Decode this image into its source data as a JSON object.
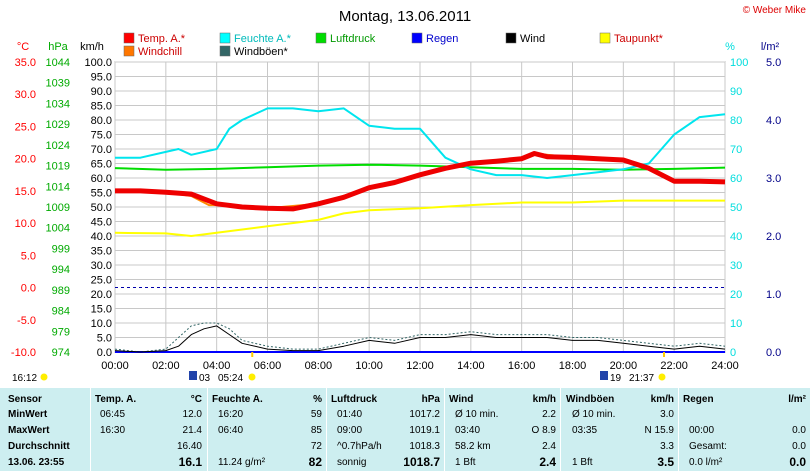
{
  "chart_data": {
    "type": "line",
    "title": "Montag, 13.06.2011",
    "credit": "© Weber Mike",
    "x_ticks": [
      "00:00",
      "02:00",
      "04:00",
      "06:00",
      "08:00",
      "10:00",
      "12:00",
      "14:00",
      "16:00",
      "18:00",
      "20:00",
      "22:00",
      "24:00"
    ],
    "x_range": [
      0,
      24
    ],
    "axes": {
      "temp": {
        "label": "°C",
        "range": [
          -10,
          35
        ],
        "ticks": [
          "-10.0",
          "-5.0",
          "0.0",
          "5.0",
          "10.0",
          "15.0",
          "20.0",
          "25.0",
          "30.0",
          "35.0"
        ],
        "color": "#ff0000"
      },
      "pressure": {
        "label": "hPa",
        "range": [
          974,
          1044
        ],
        "ticks": [
          "974",
          "979",
          "984",
          "989",
          "994",
          "999",
          "1004",
          "1009",
          "1014",
          "1019",
          "1024",
          "1029",
          "1034",
          "1039",
          "1044"
        ],
        "color": "#00aa00"
      },
      "wind": {
        "label": "km/h",
        "range": [
          0,
          100
        ],
        "ticks": [
          "0.0",
          "5.0",
          "10.0",
          "15.0",
          "20.0",
          "25.0",
          "30.0",
          "35.0",
          "40.0",
          "45.0",
          "50.0",
          "55.0",
          "60.0",
          "65.0",
          "70.0",
          "75.0",
          "80.0",
          "85.0",
          "90.0",
          "95.0",
          "100.0"
        ],
        "color": "#000000"
      },
      "humidity": {
        "label": "%",
        "range": [
          0,
          100
        ],
        "ticks": [
          "0",
          "10",
          "20",
          "30",
          "40",
          "50",
          "60",
          "70",
          "80",
          "90",
          "100"
        ],
        "color": "#00dddd"
      },
      "rain": {
        "label": "l/m²",
        "range": [
          0,
          5
        ],
        "ticks": [
          "0.0",
          "1.0",
          "2.0",
          "3.0",
          "4.0",
          "5.0"
        ],
        "color": "#000088"
      }
    },
    "legend": [
      {
        "name": "Temp. A.*",
        "color": "#ff0000"
      },
      {
        "name": "Feuchte A.*",
        "color": "#00ffff"
      },
      {
        "name": "Luftdruck",
        "color": "#00dd00"
      },
      {
        "name": "Regen",
        "color": "#0000ff"
      },
      {
        "name": "Wind",
        "color": "#000000"
      },
      {
        "name": "Taupunkt*",
        "color": "#ffff00"
      },
      {
        "name": "Windchill",
        "color": "#ff7700"
      },
      {
        "name": "Windböen*",
        "color": "#336666"
      }
    ],
    "series": [
      {
        "name": "Temp. A.*",
        "axis": "temp",
        "color": "#ee0000",
        "x": [
          0,
          1,
          2,
          3,
          4,
          5,
          6,
          7,
          8,
          9,
          10,
          11,
          12,
          13,
          14,
          15,
          16,
          16.5,
          17,
          18,
          19,
          20,
          21,
          22,
          23,
          24
        ],
        "y": [
          15.0,
          15.0,
          14.8,
          14.5,
          13.0,
          12.5,
          12.3,
          12.2,
          13.0,
          14.0,
          15.5,
          16.3,
          17.5,
          18.5,
          19.3,
          19.6,
          20.0,
          20.8,
          20.3,
          20.2,
          20.0,
          19.8,
          18.5,
          16.5,
          16.5,
          16.4
        ]
      },
      {
        "name": "Windchill",
        "axis": "temp",
        "color": "#ff8800",
        "x": [
          0,
          2,
          3,
          3.7,
          4,
          6,
          8,
          10,
          12,
          14,
          16,
          16.5,
          18,
          20,
          21,
          22,
          23,
          24
        ],
        "y": [
          15.0,
          14.8,
          14.2,
          12.8,
          12.8,
          12.3,
          13.0,
          15.5,
          17.5,
          19.3,
          20.0,
          20.8,
          20.2,
          19.8,
          18.3,
          16.4,
          16.5,
          16.4
        ]
      },
      {
        "name": "Feuchte A.*",
        "axis": "humidity",
        "color": "#00e5ee",
        "x": [
          0,
          1,
          2,
          2.5,
          3,
          4,
          4.5,
          5,
          6,
          7,
          8,
          9,
          10,
          11,
          12,
          13,
          14,
          15,
          16,
          17,
          18,
          19,
          20,
          21,
          22,
          23,
          24
        ],
        "y": [
          67,
          67,
          69,
          70,
          68,
          70,
          77,
          80,
          84,
          84,
          83,
          84,
          78,
          77,
          77,
          67,
          63,
          61,
          61,
          60,
          61,
          62,
          63,
          65,
          75,
          81,
          82
        ]
      },
      {
        "name": "Luftdruck",
        "axis": "pressure",
        "color": "#00dd00",
        "x": [
          0,
          2,
          4,
          6,
          8,
          10,
          12,
          14,
          16,
          18,
          20,
          22,
          24
        ],
        "y": [
          1018.4,
          1018.0,
          1018.2,
          1018.6,
          1019.0,
          1019.2,
          1019.0,
          1018.6,
          1018.2,
          1018.2,
          1018.0,
          1018.2,
          1018.5
        ]
      },
      {
        "name": "Taupunkt*",
        "axis": "temp",
        "color": "#ffff00",
        "x": [
          0,
          2,
          3,
          4,
          6,
          8,
          9,
          10,
          12,
          14,
          16,
          18,
          20,
          22,
          24
        ],
        "y": [
          8.5,
          8.4,
          8.0,
          8.5,
          9.5,
          10.5,
          11.5,
          12.0,
          12.3,
          12.8,
          13.2,
          13.2,
          13.5,
          13.5,
          13.5
        ]
      },
      {
        "name": "Wind",
        "axis": "wind",
        "color": "#000000",
        "x": [
          0,
          1,
          2,
          2.5,
          3,
          3.5,
          4,
          4.5,
          5,
          6,
          7,
          8,
          9,
          10,
          11,
          12,
          13,
          14,
          15,
          16,
          17,
          18,
          19,
          20,
          21,
          22,
          23,
          24
        ],
        "y": [
          0.5,
          0,
          0.5,
          2,
          6,
          8,
          9,
          6,
          3,
          1,
          0.5,
          0.5,
          2,
          4,
          3,
          5,
          5,
          6,
          5,
          5,
          5,
          4,
          4,
          3,
          2,
          1,
          2,
          1
        ]
      },
      {
        "name": "Windböen*",
        "axis": "wind",
        "color": "#336666",
        "x": [
          0,
          1,
          2,
          2.5,
          3,
          3.5,
          4,
          4.5,
          5,
          6,
          7,
          8,
          9,
          10,
          11,
          12,
          13,
          14,
          15,
          16,
          17,
          18,
          19,
          20,
          21,
          22,
          23,
          24
        ],
        "y": [
          1,
          0,
          1,
          5,
          9,
          10,
          10,
          8,
          4,
          2,
          1,
          1,
          3,
          5,
          4,
          6,
          6,
          7,
          6,
          6,
          6,
          5,
          5,
          4,
          3,
          2,
          3,
          2
        ]
      },
      {
        "name": "Regen",
        "axis": "rain",
        "color": "#0000ff",
        "x": [
          0,
          24
        ],
        "y": [
          0,
          0
        ]
      }
    ],
    "grid": true,
    "legend_position": "top",
    "sun": {
      "sunrise": "05:24",
      "sunset": "21:37",
      "sunrise_day": "03",
      "sunset_day": "19"
    },
    "footer_time": "16:12"
  },
  "stats": {
    "columns": [
      {
        "title": "Sensor",
        "unit": ""
      },
      {
        "title": "Temp. A.",
        "unit": "°C"
      },
      {
        "title": "Feuchte A.",
        "unit": "%"
      },
      {
        "title": "Luftdruck",
        "unit": "hPa"
      },
      {
        "title": "Wind",
        "unit": "km/h"
      },
      {
        "title": "Windböen",
        "unit": "km/h"
      },
      {
        "title": "Regen",
        "unit": "l/m²"
      }
    ],
    "rows": [
      {
        "label": "MinWert",
        "temp": [
          "06:45",
          "12.0"
        ],
        "hum": [
          "16:20",
          "59"
        ],
        "press": [
          "01:40",
          "1017.2"
        ],
        "wind": [
          "Ø 10 min.",
          "2.2"
        ],
        "gust": [
          "Ø 10 min.",
          "3.0"
        ],
        "rain": [
          "",
          ""
        ]
      },
      {
        "label": "MaxWert",
        "temp": [
          "16:30",
          "21.4"
        ],
        "hum": [
          "06:40",
          "85"
        ],
        "press": [
          "09:00",
          "1019.1"
        ],
        "wind": [
          "03:40",
          "O 8.9"
        ],
        "gust": [
          "03:35",
          "N 15.9"
        ],
        "rain": [
          "00:00",
          "0.0"
        ]
      },
      {
        "label": "Durchschnitt",
        "temp": [
          "",
          "16.40"
        ],
        "hum": [
          "",
          "72"
        ],
        "press": [
          "^0.7hPa/h",
          "1018.3"
        ],
        "wind": [
          "58.2 km",
          "2.4"
        ],
        "gust": [
          "",
          "3.3"
        ],
        "rain": [
          "Gesamt:",
          "0.0"
        ]
      },
      {
        "label": "13.06. 23:55",
        "temp": [
          "",
          "16.1"
        ],
        "hum": [
          "11.24 g/m²",
          "82"
        ],
        "press": [
          "sonnig",
          "1018.7"
        ],
        "wind": [
          "1 Bft",
          "2.4"
        ],
        "gust": [
          "1 Bft",
          "3.5"
        ],
        "rain": [
          "0.0 l/m²",
          "0.0"
        ]
      }
    ]
  }
}
